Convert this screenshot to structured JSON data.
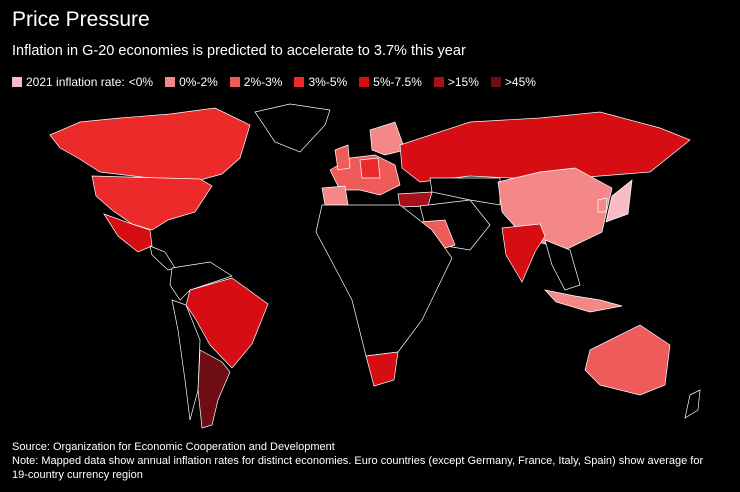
{
  "header": {
    "title": "Price Pressure",
    "subtitle": "Inflation in G-20 economies is predicted to accelerate to 3.7% this year"
  },
  "legend": {
    "prefix": "2021 inflation rate:",
    "items": [
      {
        "label": "<0%",
        "color": "#f9bcc4"
      },
      {
        "label": "0%-2%",
        "color": "#f48888"
      },
      {
        "label": "2%-3%",
        "color": "#ef5a5a"
      },
      {
        "label": "3%-5%",
        "color": "#ec2a2a"
      },
      {
        "label": "5%-7.5%",
        "color": "#d60d12"
      },
      {
        "label": ">15%",
        "color": "#a8101a"
      },
      {
        "label": ">45%",
        "color": "#6e0e14"
      }
    ]
  },
  "footer": {
    "source": "Source: Organization for Economic Cooperation and Development",
    "note": "Note: Mapped data show annual inflation rates for distinct economies. Euro countries (except Germany, France, Italy, Spain) show average for 19-country currency region"
  }
}
